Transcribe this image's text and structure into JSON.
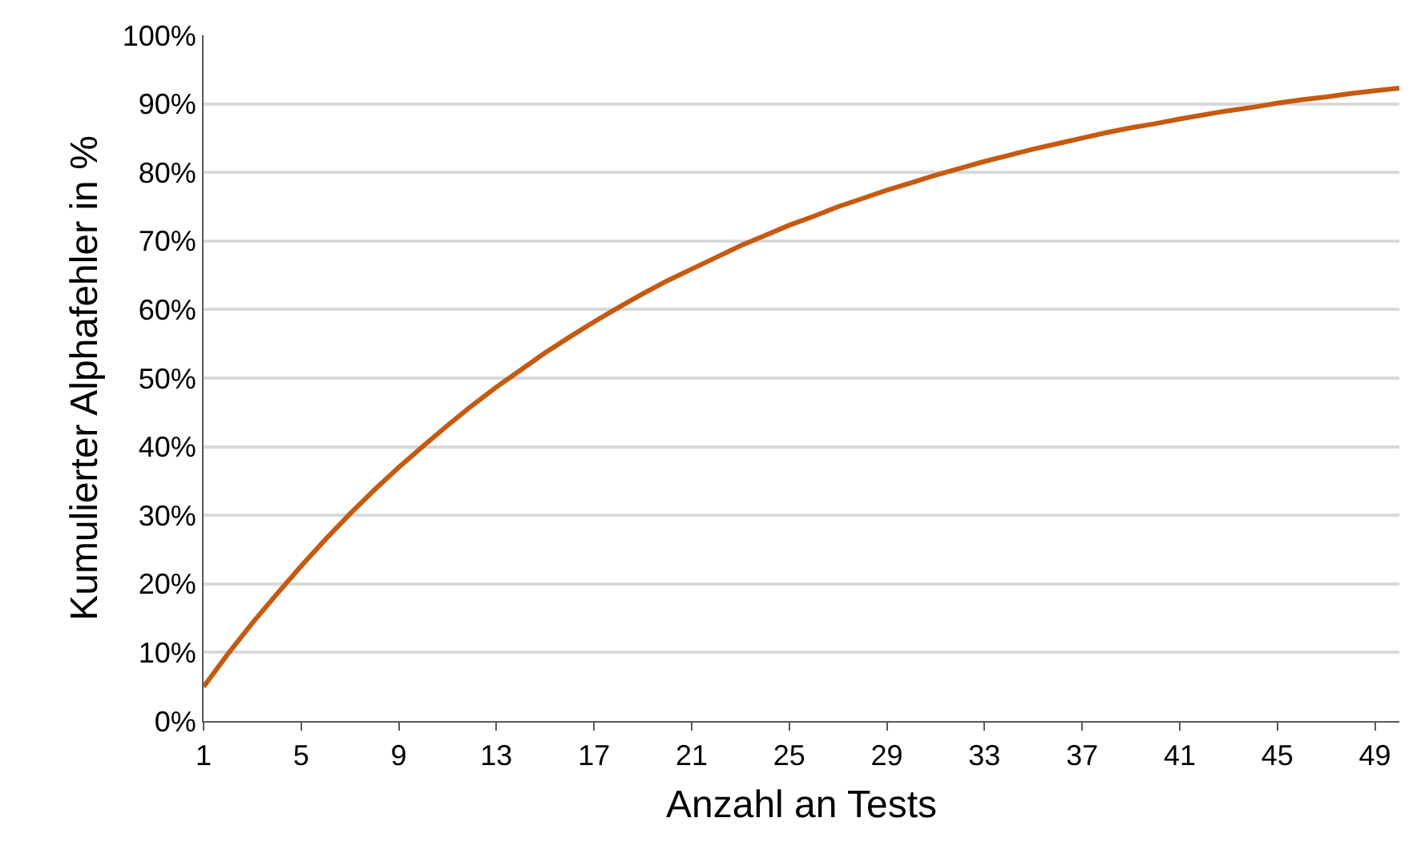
{
  "chart_data": {
    "type": "line",
    "xlabel": "Anzahl an Tests",
    "ylabel": "Kumulierter Alphafehler in %",
    "x": [
      1,
      2,
      3,
      4,
      5,
      6,
      7,
      8,
      9,
      10,
      11,
      12,
      13,
      14,
      15,
      16,
      17,
      18,
      19,
      20,
      21,
      22,
      23,
      24,
      25,
      26,
      27,
      28,
      29,
      30,
      31,
      32,
      33,
      34,
      35,
      36,
      37,
      38,
      39,
      40,
      41,
      42,
      43,
      44,
      45,
      46,
      47,
      48,
      49,
      50
    ],
    "series": [
      {
        "color": "#c55a11",
        "values": [
          5.0,
          9.8,
          14.3,
          18.5,
          22.6,
          26.5,
          30.2,
          33.7,
          37.0,
          40.1,
          43.1,
          46.0,
          48.7,
          51.2,
          53.7,
          56.0,
          58.2,
          60.3,
          62.3,
          64.2,
          65.9,
          67.6,
          69.3,
          70.8,
          72.3,
          73.6,
          75.0,
          76.2,
          77.4,
          78.5,
          79.6,
          80.6,
          81.6,
          82.5,
          83.4,
          84.2,
          85.0,
          85.8,
          86.5,
          87.1,
          87.8,
          88.4,
          89.0,
          89.5,
          90.1,
          90.6,
          91.0,
          91.5,
          91.9,
          92.3
        ]
      }
    ],
    "xlim": [
      1,
      50
    ],
    "xticks": [
      1,
      5,
      9,
      13,
      17,
      21,
      25,
      29,
      33,
      37,
      41,
      45,
      49
    ],
    "ylim": [
      0,
      100
    ],
    "yticks": [
      {
        "value": 0,
        "label": "0%"
      },
      {
        "value": 10,
        "label": "10%"
      },
      {
        "value": 20,
        "label": "20%"
      },
      {
        "value": 30,
        "label": "30%"
      },
      {
        "value": 40,
        "label": "40%"
      },
      {
        "value": 50,
        "label": "50%"
      },
      {
        "value": 60,
        "label": "60%"
      },
      {
        "value": 70,
        "label": "70%"
      },
      {
        "value": 80,
        "label": "80%"
      },
      {
        "value": 90,
        "label": "90%"
      },
      {
        "value": 100,
        "label": "100%"
      }
    ],
    "grid": "y",
    "legend": false,
    "marker": "none",
    "line_style": "solid"
  }
}
